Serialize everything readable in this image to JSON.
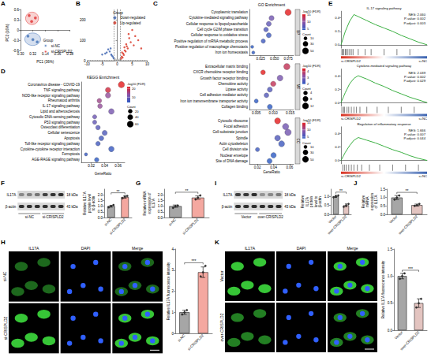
{
  "chart_data": [
    {
      "panel": "A",
      "type": "scatter",
      "xlabel": "PC1 (36%)",
      "ylabel": "PC2 (16%)",
      "xlim": [
        0.3,
        0.38
      ],
      "xticks": [
        {
          "value": 0.3,
          "label": "0.30"
        },
        0.32,
        0.34,
        0.36,
        0.38
      ],
      "ylim": [
        -0.6,
        0.6
      ],
      "yticks": [
        -0.6,
        -0.3,
        0,
        0.3,
        0.6
      ],
      "legend_title": "Group",
      "legend": "lower right",
      "series": [
        {
          "name": "si-NC",
          "color": "#3f6fb5",
          "x": [
            0.312,
            0.32,
            0.327
          ],
          "y": [
            -0.18,
            -0.28,
            -0.35
          ]
        },
        {
          "name": "si-CRISPLD2",
          "color": "#e0302f",
          "x": [
            0.314,
            0.324,
            0.318
          ],
          "y": [
            0.42,
            0.35,
            0.25
          ]
        }
      ]
    },
    {
      "panel": "B",
      "type": "volcano",
      "xlim": [
        -10,
        10
      ],
      "xticks": [
        -10,
        -5,
        0,
        5,
        10
      ],
      "ylim": [
        0,
        250
      ],
      "yticks": [
        0,
        100,
        200
      ],
      "thresholds": {
        "x": [
          -1,
          1
        ],
        "y": 1.3
      },
      "legend_title": "Group",
      "legend": "upper right",
      "background": {
        "color": "#c8c8c8",
        "x": [
          -0.5,
          0.3,
          0.8,
          -0.8,
          0.1,
          -0.2,
          0.6,
          -0.6,
          0.4,
          -0.4,
          0.9,
          -0.9
        ],
        "y": [
          2,
          1,
          3,
          4,
          0.5,
          1.5,
          5,
          6,
          2.5,
          3.5,
          7,
          8
        ]
      },
      "series": [
        {
          "name": "Down-regulated",
          "color": "#3a62b0",
          "x": [
            -1.5,
            -2,
            -2.5,
            -3,
            -1.2,
            -3.5,
            -4,
            -1.8,
            -2.2,
            -5
          ],
          "y": [
            20,
            30,
            45,
            55,
            12,
            40,
            35,
            25,
            60,
            30
          ]
        },
        {
          "name": "Up-regulated",
          "color": "#d7301f",
          "x": [
            1.5,
            2,
            2.5,
            3,
            3.5,
            4,
            1.8,
            2.2,
            5,
            6,
            2.8,
            1.3,
            3.2,
            4.5,
            7,
            1.6,
            2.4,
            3.8,
            5.5,
            8
          ],
          "y": [
            20,
            35,
            50,
            80,
            60,
            110,
            15,
            28,
            150,
            120,
            45,
            10,
            70,
            90,
            100,
            40,
            65,
            130,
            75,
            60
          ]
        }
      ]
    },
    {
      "panel": "C",
      "type": "dot",
      "title": "GO Enrichment",
      "xlabel": "GeneRatio",
      "color_title": "-log10 (FDR)",
      "count_title": "Count",
      "facets": [
        {
          "name": "BP",
          "terms": [
            "Cytoplasmic translation",
            "Cytokine-mediated signaling pathway",
            "Cellular response to lipopolysaccharide",
            "Cell cycle G2/M phase transition",
            "Cellular response to oxidative stress",
            "Positive regulation of mRNA metabolic process",
            "Positive regulation of macrophage chemotaxis",
            "Iron ion homeostasis"
          ],
          "gene_ratio": [
            0.075,
            0.045,
            0.04,
            0.035,
            0.04,
            0.03,
            0.01,
            0.012
          ],
          "neg_log10_fdr": [
            15,
            8,
            7,
            6,
            5,
            5,
            4,
            4
          ],
          "count": [
            50,
            30,
            28,
            24,
            28,
            20,
            7,
            8
          ],
          "xlim": [
            0.005,
            0.085
          ],
          "xticks": [
            0.025,
            {
              "value": 0.05,
              "label": "0.050"
            },
            0.075
          ],
          "color_range": [
            4,
            15
          ],
          "color_ticks": [
            5,
            10,
            15
          ],
          "count_ticks": [
            10,
            30,
            50
          ]
        },
        {
          "name": "MF",
          "terms": [
            "Extracellular matrix binding",
            "CXCR chemokine receptor binding",
            "Growth factor receptor binding",
            "Chemokine activity",
            "Lipase activity",
            "Cell adhesion mediator activity",
            "Iron ion transmembrane transporter activity",
            "Collagen binding"
          ],
          "gene_ratio": [
            0.014,
            0.007,
            0.012,
            0.01,
            0.009,
            0.008,
            0.005,
            0.009
          ],
          "neg_log10_fdr": [
            4,
            4.5,
            3,
            4,
            2.5,
            2.5,
            2,
            2
          ],
          "count": [
            12,
            6,
            10,
            8,
            7,
            6,
            4,
            7
          ],
          "xlim": [
            0.003,
            0.016
          ],
          "xticks": [
            0.005,
            {
              "value": 0.01,
              "label": "0.010"
            },
            0.015
          ],
          "color_range": [
            2,
            4.5
          ],
          "color_ticks": [
            2,
            3,
            4
          ],
          "count_ticks": [
            4,
            8,
            12
          ]
        },
        {
          "name": "CC",
          "terms": [
            "Cytosolic ribosome",
            "Focal adhesion",
            "Cell-substrate junction",
            "Spindle",
            "Actin cytoskeleton",
            "Cell division site",
            "Nuclear envelope",
            "Site of DNA damage"
          ],
          "gene_ratio": [
            0.045,
            0.055,
            0.058,
            0.045,
            0.05,
            0.02,
            0.04,
            0.035
          ],
          "neg_log10_fdr": [
            15,
            8,
            8,
            6,
            5,
            5,
            4,
            4
          ],
          "count": [
            45,
            50,
            52,
            40,
            45,
            18,
            35,
            30
          ],
          "xlim": [
            0.01,
            0.065
          ],
          "xticks": [
            0.02,
            0.04,
            0.06
          ],
          "color_range": [
            4,
            15
          ],
          "color_ticks": [
            5,
            10,
            15
          ],
          "count_ticks": [
            10,
            30,
            50
          ]
        }
      ]
    },
    {
      "panel": "D",
      "type": "dot",
      "title": "KEGG Enrichment",
      "xlabel": "GeneRatio",
      "color_title": "-log10 (FDR)",
      "count_title": "Count",
      "facets": [
        {
          "terms": [
            "Coronavirus disease - COVID-19",
            "TNF signaling pathway",
            "NOD-like receptor signaling pathway",
            "Rheumatoid arthritis",
            "IL-17 signaling pathway",
            "Lipid and atherosclerosis",
            "Cytosolic DNA-sensing pathway",
            "P53 signaling pathway",
            "Osteoclast differentiation",
            "Cellular senescence",
            "Apoptosis",
            "Toll-like receptor signaling pathway",
            "Cytokine-cytokine receptor interaction",
            "Ferroptosis",
            "AGE-RAGE signaling pathway"
          ],
          "gene_ratio": [
            0.065,
            0.045,
            0.045,
            0.032,
            0.033,
            0.05,
            0.025,
            0.025,
            0.03,
            0.04,
            0.035,
            0.03,
            0.05,
            0.012,
            0.028
          ],
          "neg_log10_fdr": [
            22,
            20,
            14,
            15,
            14,
            11,
            10,
            9,
            8,
            7,
            6,
            6,
            5,
            5,
            4
          ],
          "count": [
            60,
            40,
            40,
            28,
            29,
            45,
            22,
            22,
            27,
            36,
            31,
            26,
            44,
            10,
            25
          ],
          "xlim": [
            0.005,
            0.07
          ],
          "xticks": [
            0.02,
            0.04,
            0.06
          ],
          "color_range": [
            4,
            22
          ],
          "color_ticks": [
            10,
            20
          ],
          "count_ticks": [
            20,
            40,
            60
          ]
        }
      ]
    },
    {
      "panel": "E",
      "type": "gsea",
      "color": "#3cb043",
      "ranks": [
        "si-CRISPLD2",
        "si-NC"
      ],
      "xlim": [
        0,
        1
      ],
      "tick_labels": "y",
      "plots": [
        {
          "title": "IL-17 signaling pathway",
          "stats": [
            "NES: 2.060",
            "P-value: 0.002",
            "P.adjust: 0.003"
          ],
          "x": [
            0,
            0.05,
            0.1,
            0.15,
            0.2,
            0.3,
            0.4,
            0.5,
            0.6,
            0.7,
            0.8,
            0.9,
            1
          ],
          "es": [
            0,
            0.2,
            0.35,
            0.45,
            0.42,
            0.36,
            0.3,
            0.25,
            0.2,
            0.14,
            0.09,
            0.04,
            0
          ],
          "hits": [
            0.01,
            0.02,
            0.03,
            0.05,
            0.06,
            0.08,
            0.1,
            0.12,
            0.14,
            0.2,
            0.28,
            0.35,
            0.5,
            0.65,
            0.8
          ],
          "ylim": [
            -0.05,
            0.5
          ],
          "yticks": [
            {
              "value": 0,
              "label": "0.0"
            },
            0.2,
            0.4
          ]
        },
        {
          "title": "Cytokine-mediated signaling pathway",
          "stats": [
            "NES: 2.039",
            "P-value: 0.002",
            "P.adjust: 0.029"
          ],
          "x": [
            0,
            0.05,
            0.1,
            0.15,
            0.2,
            0.3,
            0.4,
            0.5,
            0.6,
            0.7,
            0.8,
            0.9,
            1
          ],
          "es": [
            0,
            0.15,
            0.28,
            0.36,
            0.4,
            0.35,
            0.29,
            0.24,
            0.18,
            0.13,
            0.08,
            0.04,
            0
          ],
          "hits": [
            0.01,
            0.03,
            0.04,
            0.07,
            0.09,
            0.12,
            0.15,
            0.18,
            0.22,
            0.3,
            0.42,
            0.55,
            0.7,
            0.85
          ],
          "ylim": [
            -0.05,
            0.5
          ],
          "yticks": [
            {
              "value": 0,
              "label": "0.0"
            },
            0.2,
            0.4
          ]
        },
        {
          "title": "Regulation of inflammatory response",
          "stats": [
            "NES: 1.666",
            "P-value: 0.007",
            "P.adjust: 0.044"
          ],
          "x": [
            0,
            0.05,
            0.1,
            0.15,
            0.2,
            0.3,
            0.4,
            0.5,
            0.6,
            0.7,
            0.8,
            0.9,
            1
          ],
          "es": [
            0,
            0.12,
            0.22,
            0.3,
            0.34,
            0.3,
            0.26,
            0.21,
            0.16,
            0.12,
            0.07,
            0.03,
            0
          ],
          "hits": [
            0.02,
            0.04,
            0.06,
            0.09,
            0.12,
            0.15,
            0.19,
            0.24,
            0.33,
            0.45,
            0.6,
            0.75,
            0.9
          ],
          "ylim": [
            -0.05,
            0.5
          ],
          "yticks": [
            {
              "value": 0,
              "label": "0.0"
            },
            0.2,
            0.4
          ]
        }
      ]
    },
    {
      "panel": "F",
      "type": "bar",
      "ylabel": "Relative IL17A protein level to β-actin",
      "categories": [
        "si-NC",
        "si-CRISPLD2"
      ],
      "values": [
        1.0,
        1.8
      ],
      "errors": [
        0.08,
        0.1
      ],
      "points": [
        [
          0.9,
          1.0,
          1.1
        ],
        [
          1.7,
          1.85,
          1.9
        ]
      ],
      "colors": [
        "#a6a6a6",
        "#f4a8a0"
      ],
      "significance": "**",
      "ylim": [
        0,
        2.5
      ],
      "yticks": [
        {
          "value": 0,
          "label": "0.0"
        },
        0.5,
        {
          "value": 1,
          "label": "1.0"
        },
        1.5,
        {
          "value": 2,
          "label": "2.0"
        }
      ]
    },
    {
      "panel": "G",
      "type": "bar",
      "ylabel": "Relative mRNA expression of IL17A",
      "categories": [
        "si-NC",
        "si-CRISPLD2"
      ],
      "values": [
        1.0,
        1.75
      ],
      "errors": [
        0.1,
        0.15
      ],
      "points": [
        [
          0.85,
          1.0,
          1.05
        ],
        [
          1.6,
          1.75,
          1.95
        ]
      ],
      "colors": [
        "#a6a6a6",
        "#f4a8a0"
      ],
      "significance": "**",
      "ylim": [
        0,
        2.5
      ],
      "yticks": [
        {
          "value": 0,
          "label": "0.0"
        },
        0.5,
        {
          "value": 1,
          "label": "1.0"
        },
        1.5,
        {
          "value": 2,
          "label": "2.0"
        }
      ]
    },
    {
      "panel": "I",
      "type": "bar",
      "ylabel": "Relative IL17A protein level to β-actin",
      "categories": [
        "Vector",
        "over-CRISPLD2"
      ],
      "values": [
        1.0,
        0.5
      ],
      "errors": [
        0.06,
        0.08
      ],
      "points": [
        [
          0.95,
          1.0,
          1.05
        ],
        [
          0.42,
          0.5,
          0.58
        ]
      ],
      "colors": [
        "#a6a6a6",
        "#e3c4c0"
      ],
      "significance": "**",
      "ylim": [
        0,
        1.4
      ],
      "yticks": [
        {
          "value": 0,
          "label": "0.0"
        },
        0.5,
        {
          "value": 1,
          "label": "1.0"
        }
      ]
    },
    {
      "panel": "J",
      "type": "bar",
      "ylabel": "Relative mRNA expression of IL17A",
      "categories": [
        "Vector",
        "over-CRISPLD2"
      ],
      "values": [
        1.0,
        0.55
      ],
      "errors": [
        0.12,
        0.06
      ],
      "points": [
        [
          0.88,
          1.0,
          1.12
        ],
        [
          0.5,
          0.55,
          0.62
        ]
      ],
      "colors": [
        "#a6a6a6",
        "#e3c4c0"
      ],
      "significance": "**",
      "ylim": [
        0,
        1.5
      ],
      "yticks": [
        {
          "value": 0,
          "label": "0.0"
        },
        0.5,
        {
          "value": 1,
          "label": "1.0"
        },
        1.5
      ]
    },
    {
      "panel": "H",
      "type": "bar",
      "ylabel": "Relative IL17A fluorescence intensity",
      "categories": [
        "si-NC",
        "si-CRISPLD2"
      ],
      "values": [
        1.0,
        2.9
      ],
      "errors": [
        0.1,
        0.25
      ],
      "points": [
        [
          0.9,
          1.0,
          1.1
        ],
        [
          2.7,
          2.9,
          3.2
        ]
      ],
      "colors": [
        "#a6a6a6",
        "#f4a8a0"
      ],
      "significance": "***",
      "ylim": [
        0,
        4
      ],
      "yticks": [
        0,
        1,
        2,
        3,
        4
      ]
    },
    {
      "panel": "K",
      "type": "bar",
      "ylabel": "Relative IL17A fluorescence intensity",
      "categories": [
        "Vector",
        "over-CRISPLD2"
      ],
      "values": [
        1.0,
        0.5
      ],
      "errors": [
        0.05,
        0.08
      ],
      "points": [
        [
          0.95,
          1.0,
          1.05
        ],
        [
          0.42,
          0.5,
          0.58
        ]
      ],
      "colors": [
        "#a6a6a6",
        "#e3c4c0"
      ],
      "significance": "***",
      "ylim": [
        0,
        1.5
      ],
      "yticks": [
        {
          "value": 0,
          "label": "0.0"
        },
        0.5,
        {
          "value": 1,
          "label": "1.0"
        },
        1.5
      ]
    }
  ],
  "blots": [
    {
      "panel": "F",
      "rows": [
        {
          "label": "IL17A",
          "size": "18 kDa"
        },
        {
          "label": "β-actin",
          "size": "43 kDa"
        }
      ],
      "lanes": [
        "si-NC",
        "si-CRISPLD2"
      ]
    },
    {
      "panel": "I",
      "rows": [
        {
          "label": "IL17A",
          "size": "18 kDa"
        },
        {
          "label": "β-actin",
          "size": "43 kDa"
        }
      ],
      "lanes": [
        "Vector",
        "over-CRISPLD2"
      ]
    }
  ],
  "micrographs": [
    {
      "panel": "H",
      "columns": [
        "IL17A",
        "DAPI",
        "Merge"
      ],
      "rows": [
        "si-NC",
        "si-CRISPLD2"
      ]
    },
    {
      "panel": "K",
      "columns": [
        "IL17A",
        "DAPI",
        "Merge"
      ],
      "rows": [
        "Vector",
        "over-CRISPLD2"
      ]
    }
  ]
}
